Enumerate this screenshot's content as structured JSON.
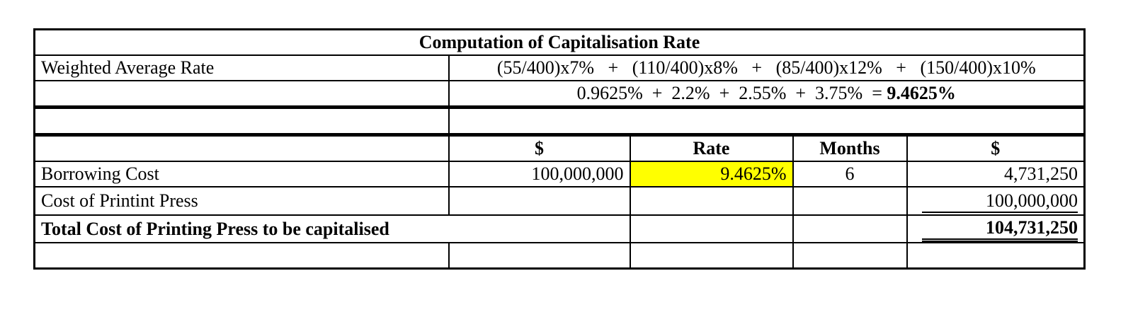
{
  "table": {
    "title": "Computation of Capitalisation Rate",
    "weighted_average": {
      "label": "Weighted Average Rate",
      "formula": "(55/400)x7%   +   (110/400)x8%   +   (85/400)x12%   +   (150/400)x10%",
      "working": "0.9625%  +  2.2%  +  2.55%  +  3.75%  =",
      "result": "9.4625%"
    },
    "headers": [
      "$",
      "Rate",
      "Months",
      "$"
    ],
    "borrowing": {
      "label": "Borrowing Cost",
      "amount": "100,000,000",
      "rate": "9.4625%",
      "months": "6",
      "total": "4,731,250"
    },
    "press": {
      "label": "Cost of Printint Press",
      "total": "100,000,000"
    },
    "grand_total": {
      "label": "Total Cost of Printing Press to be capitalised",
      "total": "104,731,250"
    }
  }
}
